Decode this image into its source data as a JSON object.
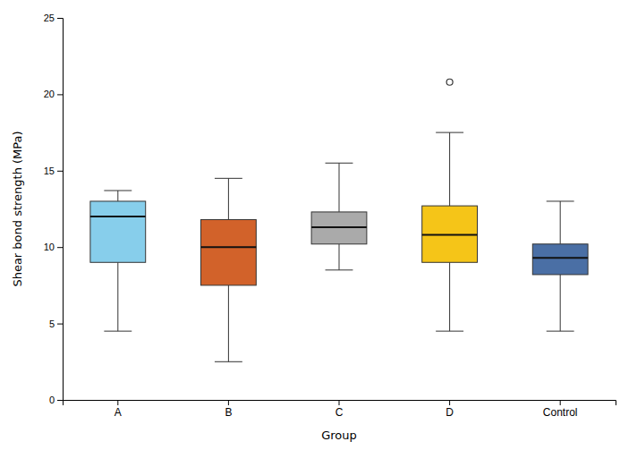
{
  "chart_data": {
    "type": "box",
    "xlabel": "Group",
    "ylabel": "Shear bond strength (MPa)",
    "categories": [
      "A",
      "B",
      "C",
      "D",
      "Control"
    ],
    "colors": [
      "#87CEEB",
      "#D2622A",
      "#AAAAAA",
      "#F5C518",
      "#4A6FA5"
    ],
    "values": [
      {
        "whislo": 4.5,
        "q1": 9.0,
        "median": 12.0,
        "q3": 13.0,
        "whishi": 13.7,
        "fliers": []
      },
      {
        "whislo": 2.5,
        "q1": 7.5,
        "median": 10.0,
        "q3": 11.8,
        "whishi": 14.5,
        "fliers": []
      },
      {
        "whislo": 8.5,
        "q1": 10.2,
        "median": 11.3,
        "q3": 12.3,
        "whishi": 15.5,
        "fliers": []
      },
      {
        "whislo": 4.5,
        "q1": 9.0,
        "median": 10.8,
        "q3": 12.7,
        "whishi": 17.5,
        "fliers": [
          20.8
        ]
      },
      {
        "whislo": 4.5,
        "q1": 8.2,
        "median": 9.3,
        "q3": 10.2,
        "whishi": 13.0,
        "fliers": []
      }
    ],
    "ylim": [
      0,
      25
    ],
    "yticks": [
      0,
      5,
      10,
      15,
      20,
      25
    ],
    "grid": false
  }
}
